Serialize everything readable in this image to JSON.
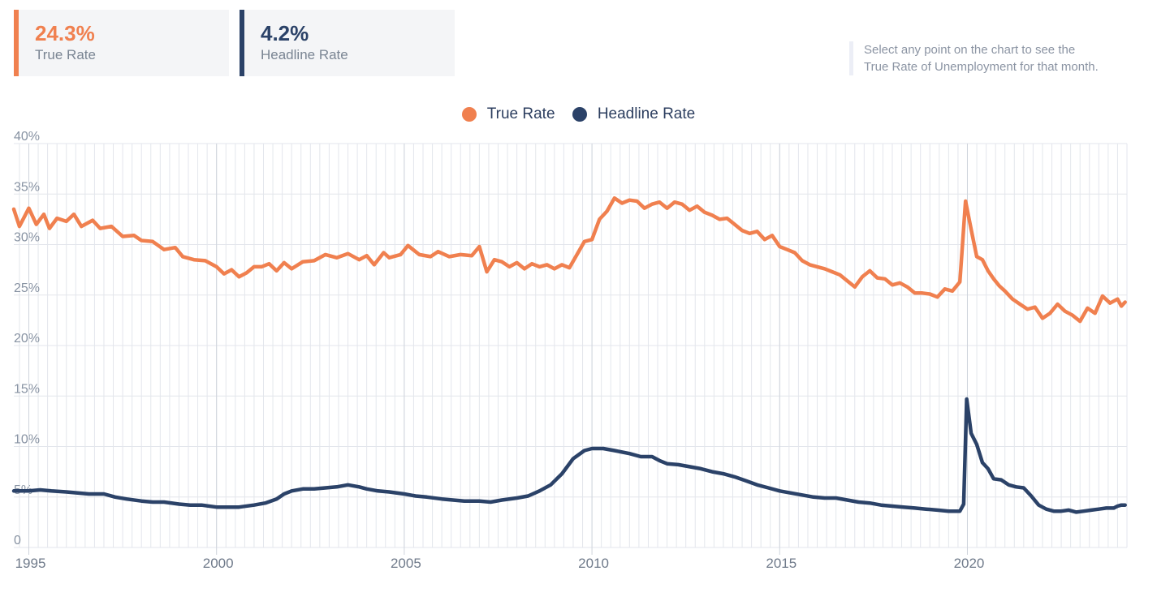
{
  "summary": {
    "true_rate": {
      "value": "24.3%",
      "label": "True Rate",
      "color": "#f0804f"
    },
    "headline_rate": {
      "value": "4.2%",
      "label": "Headline Rate",
      "color": "#2b4268"
    }
  },
  "hint": {
    "line1": "Select any point on the chart to see the",
    "line2": "True Rate of Unemployment for that month."
  },
  "chart_data": {
    "type": "line",
    "legend_position": "top-center",
    "grid": true,
    "ylim": [
      0,
      40
    ],
    "xlim": [
      1994.6,
      2024.25
    ],
    "y_ticks": [
      {
        "value": 0,
        "label": "0"
      },
      {
        "value": 5,
        "label": "5%"
      },
      {
        "value": 10,
        "label": "10%"
      },
      {
        "value": 15,
        "label": "15%"
      },
      {
        "value": 20,
        "label": "20%"
      },
      {
        "value": 25,
        "label": "25%"
      },
      {
        "value": 30,
        "label": "30%"
      },
      {
        "value": 35,
        "label": "35%"
      },
      {
        "value": 40,
        "label": "40%"
      }
    ],
    "x_ticks": [
      {
        "value": 1995,
        "label": "1995"
      },
      {
        "value": 2000,
        "label": "2000"
      },
      {
        "value": 2005,
        "label": "2005"
      },
      {
        "value": 2010,
        "label": "2010"
      },
      {
        "value": 2015,
        "label": "2015"
      },
      {
        "value": 2020,
        "label": "2020"
      }
    ],
    "series": [
      {
        "name": "True Rate",
        "color": "#f0804f",
        "points": [
          [
            1994.6,
            33.5
          ],
          [
            1994.75,
            31.8
          ],
          [
            1995.0,
            33.6
          ],
          [
            1995.2,
            32.0
          ],
          [
            1995.4,
            33.0
          ],
          [
            1995.55,
            31.6
          ],
          [
            1995.75,
            32.6
          ],
          [
            1996.0,
            32.3
          ],
          [
            1996.2,
            33.0
          ],
          [
            1996.4,
            31.8
          ],
          [
            1996.7,
            32.4
          ],
          [
            1996.9,
            31.6
          ],
          [
            1997.2,
            31.8
          ],
          [
            1997.5,
            30.8
          ],
          [
            1997.8,
            30.9
          ],
          [
            1998.0,
            30.4
          ],
          [
            1998.3,
            30.3
          ],
          [
            1998.6,
            29.5
          ],
          [
            1998.9,
            29.7
          ],
          [
            1999.1,
            28.8
          ],
          [
            1999.4,
            28.5
          ],
          [
            1999.7,
            28.4
          ],
          [
            2000.0,
            27.8
          ],
          [
            2000.2,
            27.1
          ],
          [
            2000.4,
            27.5
          ],
          [
            2000.6,
            26.8
          ],
          [
            2000.8,
            27.2
          ],
          [
            2001.0,
            27.8
          ],
          [
            2001.2,
            27.8
          ],
          [
            2001.4,
            28.1
          ],
          [
            2001.6,
            27.4
          ],
          [
            2001.8,
            28.2
          ],
          [
            2002.0,
            27.6
          ],
          [
            2002.3,
            28.3
          ],
          [
            2002.6,
            28.4
          ],
          [
            2002.9,
            29.0
          ],
          [
            2003.2,
            28.7
          ],
          [
            2003.5,
            29.1
          ],
          [
            2003.8,
            28.5
          ],
          [
            2004.0,
            28.9
          ],
          [
            2004.2,
            28.0
          ],
          [
            2004.45,
            29.2
          ],
          [
            2004.6,
            28.7
          ],
          [
            2004.9,
            29.0
          ],
          [
            2005.1,
            29.9
          ],
          [
            2005.4,
            29.0
          ],
          [
            2005.7,
            28.8
          ],
          [
            2005.9,
            29.3
          ],
          [
            2006.2,
            28.8
          ],
          [
            2006.5,
            29.0
          ],
          [
            2006.8,
            28.9
          ],
          [
            2007.0,
            29.8
          ],
          [
            2007.2,
            27.3
          ],
          [
            2007.4,
            28.5
          ],
          [
            2007.6,
            28.3
          ],
          [
            2007.8,
            27.8
          ],
          [
            2008.0,
            28.2
          ],
          [
            2008.2,
            27.6
          ],
          [
            2008.4,
            28.1
          ],
          [
            2008.6,
            27.8
          ],
          [
            2008.8,
            28.0
          ],
          [
            2009.0,
            27.6
          ],
          [
            2009.2,
            28.0
          ],
          [
            2009.4,
            27.7
          ],
          [
            2009.6,
            29.0
          ],
          [
            2009.8,
            30.3
          ],
          [
            2010.0,
            30.5
          ],
          [
            2010.2,
            32.5
          ],
          [
            2010.4,
            33.3
          ],
          [
            2010.6,
            34.6
          ],
          [
            2010.8,
            34.1
          ],
          [
            2011.0,
            34.4
          ],
          [
            2011.2,
            34.3
          ],
          [
            2011.4,
            33.6
          ],
          [
            2011.6,
            34.0
          ],
          [
            2011.8,
            34.2
          ],
          [
            2012.0,
            33.6
          ],
          [
            2012.2,
            34.2
          ],
          [
            2012.4,
            34.0
          ],
          [
            2012.6,
            33.4
          ],
          [
            2012.8,
            33.8
          ],
          [
            2013.0,
            33.2
          ],
          [
            2013.2,
            32.9
          ],
          [
            2013.4,
            32.5
          ],
          [
            2013.6,
            32.6
          ],
          [
            2013.8,
            32.0
          ],
          [
            2014.0,
            31.4
          ],
          [
            2014.2,
            31.1
          ],
          [
            2014.4,
            31.3
          ],
          [
            2014.6,
            30.5
          ],
          [
            2014.8,
            30.9
          ],
          [
            2015.0,
            29.8
          ],
          [
            2015.2,
            29.5
          ],
          [
            2015.4,
            29.2
          ],
          [
            2015.6,
            28.4
          ],
          [
            2015.8,
            28.0
          ],
          [
            2016.0,
            27.8
          ],
          [
            2016.2,
            27.6
          ],
          [
            2016.4,
            27.3
          ],
          [
            2016.6,
            27.0
          ],
          [
            2016.8,
            26.4
          ],
          [
            2017.0,
            25.8
          ],
          [
            2017.2,
            26.8
          ],
          [
            2017.4,
            27.4
          ],
          [
            2017.6,
            26.7
          ],
          [
            2017.8,
            26.6
          ],
          [
            2018.0,
            26.0
          ],
          [
            2018.2,
            26.2
          ],
          [
            2018.4,
            25.8
          ],
          [
            2018.6,
            25.2
          ],
          [
            2018.8,
            25.2
          ],
          [
            2019.0,
            25.1
          ],
          [
            2019.2,
            24.8
          ],
          [
            2019.4,
            25.6
          ],
          [
            2019.6,
            25.4
          ],
          [
            2019.8,
            26.3
          ],
          [
            2019.95,
            34.3
          ],
          [
            2020.1,
            31.5
          ],
          [
            2020.25,
            28.8
          ],
          [
            2020.4,
            28.5
          ],
          [
            2020.55,
            27.4
          ],
          [
            2020.7,
            26.6
          ],
          [
            2020.85,
            25.9
          ],
          [
            2021.0,
            25.4
          ],
          [
            2021.2,
            24.6
          ],
          [
            2021.4,
            24.1
          ],
          [
            2021.6,
            23.6
          ],
          [
            2021.8,
            23.8
          ],
          [
            2022.0,
            22.7
          ],
          [
            2022.2,
            23.2
          ],
          [
            2022.4,
            24.1
          ],
          [
            2022.6,
            23.4
          ],
          [
            2022.8,
            23.0
          ],
          [
            2023.0,
            22.4
          ],
          [
            2023.2,
            23.7
          ],
          [
            2023.4,
            23.2
          ],
          [
            2023.6,
            24.9
          ],
          [
            2023.8,
            24.2
          ],
          [
            2024.0,
            24.6
          ],
          [
            2024.1,
            23.9
          ],
          [
            2024.2,
            24.3
          ]
        ]
      },
      {
        "name": "Headline Rate",
        "color": "#2b4268",
        "points": [
          [
            1994.6,
            5.6
          ],
          [
            1995.0,
            5.6
          ],
          [
            1995.3,
            5.7
          ],
          [
            1995.6,
            5.6
          ],
          [
            1996.0,
            5.5
          ],
          [
            1996.3,
            5.4
          ],
          [
            1996.6,
            5.3
          ],
          [
            1997.0,
            5.3
          ],
          [
            1997.3,
            5.0
          ],
          [
            1997.6,
            4.8
          ],
          [
            1998.0,
            4.6
          ],
          [
            1998.3,
            4.5
          ],
          [
            1998.6,
            4.5
          ],
          [
            1999.0,
            4.3
          ],
          [
            1999.3,
            4.2
          ],
          [
            1999.6,
            4.2
          ],
          [
            2000.0,
            4.0
          ],
          [
            2000.3,
            4.0
          ],
          [
            2000.6,
            4.0
          ],
          [
            2001.0,
            4.2
          ],
          [
            2001.3,
            4.4
          ],
          [
            2001.6,
            4.8
          ],
          [
            2001.8,
            5.3
          ],
          [
            2002.0,
            5.6
          ],
          [
            2002.3,
            5.8
          ],
          [
            2002.6,
            5.8
          ],
          [
            2002.9,
            5.9
          ],
          [
            2003.2,
            6.0
          ],
          [
            2003.5,
            6.2
          ],
          [
            2003.8,
            6.0
          ],
          [
            2004.0,
            5.8
          ],
          [
            2004.3,
            5.6
          ],
          [
            2004.6,
            5.5
          ],
          [
            2005.0,
            5.3
          ],
          [
            2005.3,
            5.1
          ],
          [
            2005.6,
            5.0
          ],
          [
            2006.0,
            4.8
          ],
          [
            2006.3,
            4.7
          ],
          [
            2006.6,
            4.6
          ],
          [
            2007.0,
            4.6
          ],
          [
            2007.3,
            4.5
          ],
          [
            2007.6,
            4.7
          ],
          [
            2008.0,
            4.9
          ],
          [
            2008.3,
            5.1
          ],
          [
            2008.6,
            5.6
          ],
          [
            2008.9,
            6.2
          ],
          [
            2009.2,
            7.3
          ],
          [
            2009.5,
            8.8
          ],
          [
            2009.8,
            9.6
          ],
          [
            2010.0,
            9.8
          ],
          [
            2010.3,
            9.8
          ],
          [
            2010.6,
            9.6
          ],
          [
            2011.0,
            9.3
          ],
          [
            2011.3,
            9.0
          ],
          [
            2011.6,
            9.0
          ],
          [
            2011.8,
            8.6
          ],
          [
            2012.0,
            8.3
          ],
          [
            2012.3,
            8.2
          ],
          [
            2012.6,
            8.0
          ],
          [
            2012.9,
            7.8
          ],
          [
            2013.2,
            7.5
          ],
          [
            2013.5,
            7.3
          ],
          [
            2013.8,
            7.0
          ],
          [
            2014.1,
            6.6
          ],
          [
            2014.4,
            6.2
          ],
          [
            2014.7,
            5.9
          ],
          [
            2015.0,
            5.6
          ],
          [
            2015.3,
            5.4
          ],
          [
            2015.6,
            5.2
          ],
          [
            2015.9,
            5.0
          ],
          [
            2016.2,
            4.9
          ],
          [
            2016.5,
            4.9
          ],
          [
            2016.8,
            4.7
          ],
          [
            2017.1,
            4.5
          ],
          [
            2017.4,
            4.4
          ],
          [
            2017.7,
            4.2
          ],
          [
            2018.0,
            4.1
          ],
          [
            2018.3,
            4.0
          ],
          [
            2018.6,
            3.9
          ],
          [
            2018.9,
            3.8
          ],
          [
            2019.2,
            3.7
          ],
          [
            2019.5,
            3.6
          ],
          [
            2019.8,
            3.6
          ],
          [
            2019.9,
            4.3
          ],
          [
            2019.98,
            14.7
          ],
          [
            2020.1,
            11.3
          ],
          [
            2020.25,
            10.2
          ],
          [
            2020.4,
            8.4
          ],
          [
            2020.55,
            7.8
          ],
          [
            2020.7,
            6.8
          ],
          [
            2020.9,
            6.7
          ],
          [
            2021.1,
            6.2
          ],
          [
            2021.3,
            6.0
          ],
          [
            2021.5,
            5.9
          ],
          [
            2021.7,
            5.1
          ],
          [
            2021.9,
            4.2
          ],
          [
            2022.1,
            3.8
          ],
          [
            2022.3,
            3.6
          ],
          [
            2022.5,
            3.6
          ],
          [
            2022.7,
            3.7
          ],
          [
            2022.9,
            3.5
          ],
          [
            2023.1,
            3.6
          ],
          [
            2023.3,
            3.7
          ],
          [
            2023.5,
            3.8
          ],
          [
            2023.7,
            3.9
          ],
          [
            2023.9,
            3.9
          ],
          [
            2024.0,
            4.1
          ],
          [
            2024.1,
            4.2
          ],
          [
            2024.2,
            4.2
          ]
        ]
      }
    ]
  }
}
